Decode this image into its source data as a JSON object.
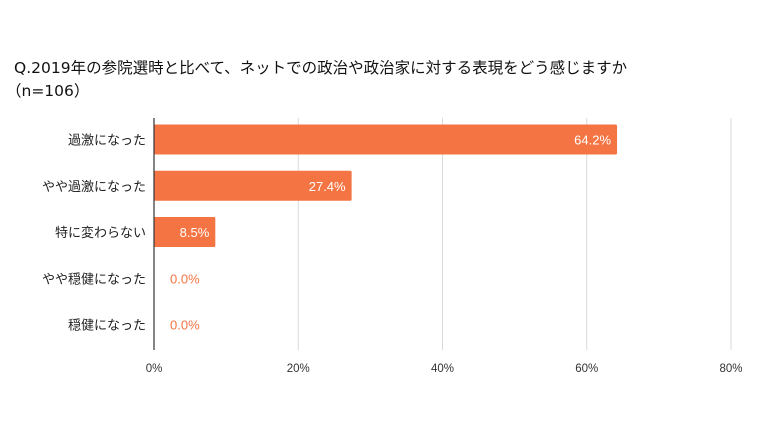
{
  "chart_data": {
    "type": "bar",
    "orientation": "horizontal",
    "title": "Q.2019年の参院選時と比べて、ネットでの政治や政治家に対する表現をどう感じますか",
    "subtitle": "（n=106）",
    "categories": [
      "過激になった",
      "やや過激になった",
      "特に変わらない",
      "やや穏健になった",
      "穏健になった"
    ],
    "values": [
      64.2,
      27.4,
      8.5,
      0.0,
      0.0
    ],
    "data_labels": [
      "64.2%",
      "27.4%",
      "8.5%",
      "0.0%",
      "0.0%"
    ],
    "x_ticks": [
      "0%",
      "20%",
      "40%",
      "60%",
      "80%"
    ],
    "x_tick_values": [
      0,
      20,
      40,
      60,
      80
    ],
    "xlim": [
      0,
      80
    ],
    "xlabel": "",
    "ylabel": "",
    "grid": true,
    "legend": "none",
    "colors": {
      "bar": "#f47443",
      "label_inside": "#ffffff",
      "label_outside": "#f47443",
      "grid": "#d9d9d9",
      "axis": "#333333"
    }
  }
}
